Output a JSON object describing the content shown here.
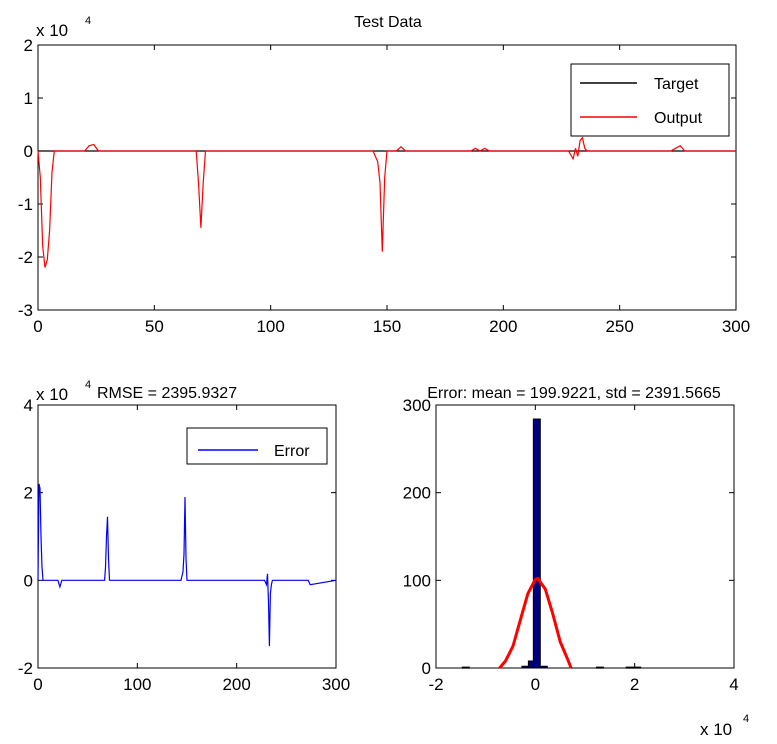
{
  "chart_data": [
    {
      "type": "line",
      "title": "Test Data",
      "y_multiplier": {
        "base": "x 10",
        "exp": "4"
      },
      "xlim": [
        0,
        300
      ],
      "ylim": [
        -3,
        2
      ],
      "xticks": [
        "0",
        "50",
        "100",
        "150",
        "200",
        "250",
        "300"
      ],
      "yticks": [
        "-3",
        "-2",
        "-1",
        "0",
        "1",
        "2"
      ],
      "legend": {
        "position": "top-right",
        "target_label": "Target",
        "output_label": "Output"
      },
      "colors": {
        "target": "#000000",
        "output": "#ff0000"
      },
      "series": [
        {
          "name": "Target",
          "x": [
            0,
            300
          ],
          "y": [
            0,
            0
          ]
        },
        {
          "name": "Output",
          "x": [
            0,
            1,
            2,
            3,
            4,
            5,
            6,
            7,
            8,
            20,
            22,
            24,
            26,
            67,
            68,
            69,
            70,
            71,
            72,
            73,
            140,
            144,
            146,
            147,
            148,
            149,
            150,
            152,
            154,
            156,
            158,
            186,
            188,
            190,
            192,
            194,
            228,
            230,
            231,
            232,
            233,
            234,
            235,
            236,
            238,
            272,
            274,
            276,
            278,
            300
          ],
          "y": [
            0,
            -0.5,
            -1.8,
            -2.2,
            -2.05,
            -1.5,
            -0.4,
            0,
            0,
            0,
            0.1,
            0.12,
            0,
            0,
            0,
            -0.6,
            -1.45,
            -0.6,
            0,
            0,
            0,
            0,
            -0.2,
            -0.6,
            -1.9,
            -0.5,
            0,
            0,
            0,
            0.08,
            0,
            0,
            0.05,
            0,
            0.05,
            0,
            0,
            -0.15,
            0.05,
            -0.1,
            0.2,
            0.25,
            0.05,
            0,
            0,
            0,
            0.05,
            0.1,
            0,
            0
          ]
        }
      ]
    },
    {
      "type": "line",
      "title": "RMSE = 2395.9327",
      "y_multiplier": {
        "base": "x 10",
        "exp": "4"
      },
      "xlim": [
        0,
        300
      ],
      "ylim": [
        -2,
        4
      ],
      "xticks": [
        "0",
        "100",
        "200",
        "300"
      ],
      "yticks": [
        "-2",
        "0",
        "2",
        "4"
      ],
      "legend": {
        "position": "top-right",
        "label": "Error"
      },
      "colors": {
        "error": "#0000ff"
      },
      "series": [
        {
          "name": "Error",
          "x": [
            0,
            1,
            2,
            3,
            4,
            5,
            6,
            20,
            22,
            24,
            67,
            68,
            69,
            70,
            71,
            72,
            144,
            146,
            147,
            148,
            149,
            150,
            228,
            230,
            231,
            232,
            233,
            234,
            235,
            236,
            238,
            272,
            274,
            300
          ],
          "y": [
            0,
            2.2,
            2.1,
            1.0,
            0.3,
            0,
            0,
            0,
            -0.15,
            0,
            0,
            0.3,
            1.0,
            1.45,
            0.5,
            0,
            0,
            0.2,
            0.6,
            1.9,
            0.5,
            0,
            0,
            -0.1,
            0.15,
            -0.5,
            -1.5,
            -0.3,
            -0.1,
            0,
            0,
            0,
            -0.1,
            0
          ]
        }
      ]
    },
    {
      "type": "bar",
      "title": "Error: mean = 199.9221, std = 2391.5665",
      "x_multiplier": {
        "base": "x 10",
        "exp": "4"
      },
      "xlim": [
        -2,
        4
      ],
      "ylim": [
        0,
        300
      ],
      "xticks": [
        "-2",
        "0",
        "2",
        "4"
      ],
      "yticks": [
        "0",
        "100",
        "200",
        "300"
      ],
      "colors": {
        "bars": "#000080",
        "fit": "#ff0000"
      },
      "bars": {
        "centers": [
          -1.4,
          -0.2,
          -0.07,
          0.03,
          0.17,
          1.3,
          1.9,
          2.05
        ],
        "width": 0.14,
        "values": [
          1,
          2,
          8,
          284,
          2,
          1,
          1,
          1
        ]
      },
      "fit_curve": {
        "x": [
          -0.72,
          -0.6,
          -0.45,
          -0.3,
          -0.15,
          0.0,
          0.05,
          0.2,
          0.35,
          0.5,
          0.65,
          0.72
        ],
        "y": [
          0,
          8,
          25,
          55,
          85,
          101,
          102,
          90,
          62,
          30,
          10,
          0
        ]
      }
    }
  ]
}
